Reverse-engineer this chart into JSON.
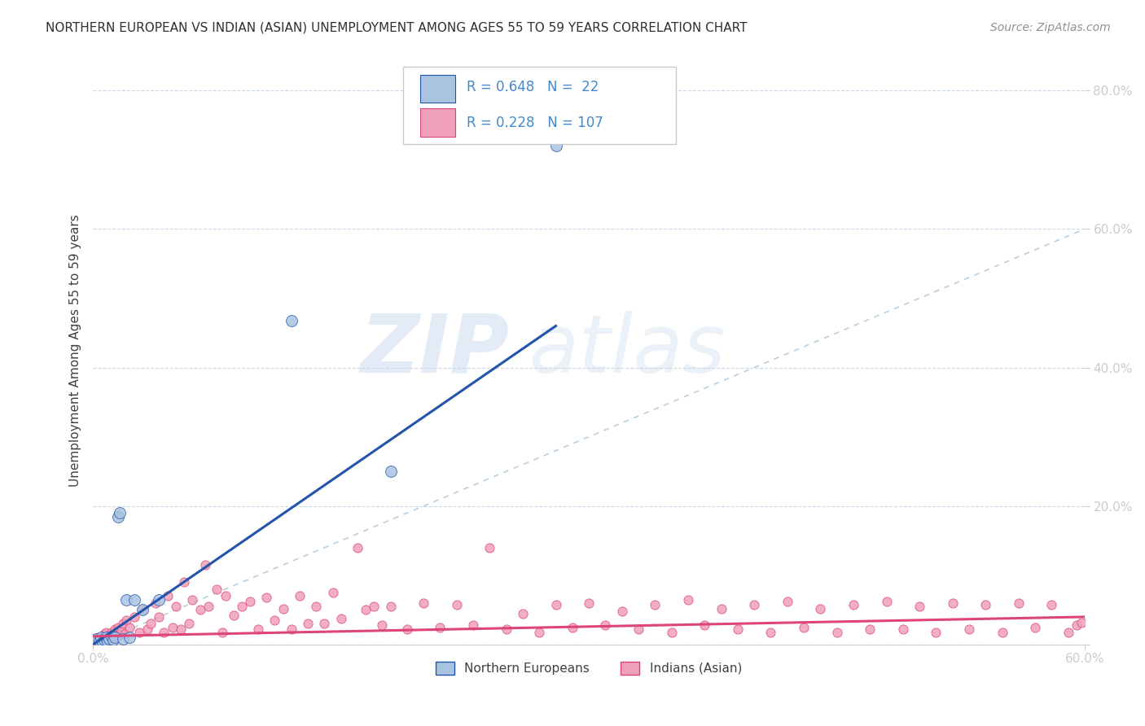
{
  "title": "NORTHERN EUROPEAN VS INDIAN (ASIAN) UNEMPLOYMENT AMONG AGES 55 TO 59 YEARS CORRELATION CHART",
  "source": "Source: ZipAtlas.com",
  "ylabel": "Unemployment Among Ages 55 to 59 years",
  "xlim": [
    0.0,
    0.6
  ],
  "ylim": [
    0.0,
    0.85
  ],
  "xticks": [
    0.0,
    0.6
  ],
  "xticklabels": [
    "0.0%",
    "60.0%"
  ],
  "yticks": [
    0.0,
    0.2,
    0.4,
    0.6,
    0.8
  ],
  "yticklabels": [
    "",
    "20.0%",
    "40.0%",
    "60.0%",
    "80.0%"
  ],
  "watermark_zip": "ZIP",
  "watermark_atlas": "atlas",
  "color_ne": "#a8c4e0",
  "color_ne_line": "#2255aa",
  "color_ind": "#f0a0b8",
  "color_ind_line": "#dd4477",
  "color_diag": "#b8cfe0",
  "marker_size_ne": 100,
  "marker_size_ind": 65,
  "ne_x": [
    0.002,
    0.004,
    0.005,
    0.006,
    0.007,
    0.008,
    0.009,
    0.01,
    0.011,
    0.012,
    0.013,
    0.015,
    0.016,
    0.018,
    0.02,
    0.022,
    0.025,
    0.03,
    0.04,
    0.12,
    0.18,
    0.28
  ],
  "ne_y": [
    0.008,
    0.005,
    0.01,
    0.003,
    0.007,
    0.01,
    0.005,
    0.008,
    0.012,
    0.007,
    0.01,
    0.185,
    0.19,
    0.008,
    0.065,
    0.01,
    0.065,
    0.05,
    0.065,
    0.468,
    0.25,
    0.72
  ],
  "ind_x": [
    0.002,
    0.003,
    0.004,
    0.005,
    0.006,
    0.007,
    0.008,
    0.009,
    0.01,
    0.011,
    0.012,
    0.013,
    0.014,
    0.015,
    0.016,
    0.017,
    0.018,
    0.019,
    0.02,
    0.022,
    0.025,
    0.028,
    0.03,
    0.033,
    0.035,
    0.038,
    0.04,
    0.043,
    0.045,
    0.048,
    0.05,
    0.053,
    0.055,
    0.058,
    0.06,
    0.065,
    0.068,
    0.07,
    0.075,
    0.078,
    0.08,
    0.085,
    0.09,
    0.095,
    0.1,
    0.105,
    0.11,
    0.115,
    0.12,
    0.125,
    0.13,
    0.135,
    0.14,
    0.145,
    0.15,
    0.16,
    0.165,
    0.17,
    0.175,
    0.18,
    0.19,
    0.2,
    0.21,
    0.22,
    0.23,
    0.24,
    0.25,
    0.26,
    0.27,
    0.28,
    0.29,
    0.3,
    0.31,
    0.32,
    0.33,
    0.34,
    0.35,
    0.36,
    0.37,
    0.38,
    0.39,
    0.4,
    0.41,
    0.42,
    0.43,
    0.44,
    0.45,
    0.46,
    0.47,
    0.48,
    0.49,
    0.5,
    0.51,
    0.52,
    0.53,
    0.54,
    0.55,
    0.56,
    0.57,
    0.58,
    0.59,
    0.595,
    0.598
  ],
  "ind_y": [
    0.005,
    0.008,
    0.01,
    0.008,
    0.012,
    0.015,
    0.018,
    0.01,
    0.012,
    0.018,
    0.015,
    0.022,
    0.01,
    0.025,
    0.015,
    0.02,
    0.03,
    0.015,
    0.035,
    0.025,
    0.04,
    0.018,
    0.05,
    0.022,
    0.03,
    0.06,
    0.04,
    0.018,
    0.07,
    0.025,
    0.055,
    0.022,
    0.09,
    0.03,
    0.065,
    0.05,
    0.115,
    0.055,
    0.08,
    0.018,
    0.07,
    0.042,
    0.055,
    0.062,
    0.022,
    0.068,
    0.035,
    0.052,
    0.022,
    0.07,
    0.03,
    0.055,
    0.03,
    0.075,
    0.038,
    0.14,
    0.05,
    0.055,
    0.028,
    0.055,
    0.022,
    0.06,
    0.025,
    0.058,
    0.028,
    0.14,
    0.022,
    0.045,
    0.018,
    0.058,
    0.025,
    0.06,
    0.028,
    0.048,
    0.022,
    0.058,
    0.018,
    0.065,
    0.028,
    0.052,
    0.022,
    0.058,
    0.018,
    0.062,
    0.025,
    0.052,
    0.018,
    0.058,
    0.022,
    0.062,
    0.022,
    0.055,
    0.018,
    0.06,
    0.022,
    0.058,
    0.018,
    0.06,
    0.025,
    0.058,
    0.018,
    0.028,
    0.032
  ],
  "ne_line_x0": 0.0,
  "ne_line_y0": 0.0,
  "ne_line_x1": 0.28,
  "ne_line_y1": 0.46,
  "ind_line_x0": 0.0,
  "ind_line_y0": 0.012,
  "ind_line_x1": 0.6,
  "ind_line_y1": 0.04,
  "tick_color": "#5090c0",
  "axis_color": "#cccccc",
  "grid_color": "#c8d8e8",
  "title_fontsize": 11,
  "source_fontsize": 10,
  "tick_fontsize": 11,
  "ylabel_fontsize": 11
}
